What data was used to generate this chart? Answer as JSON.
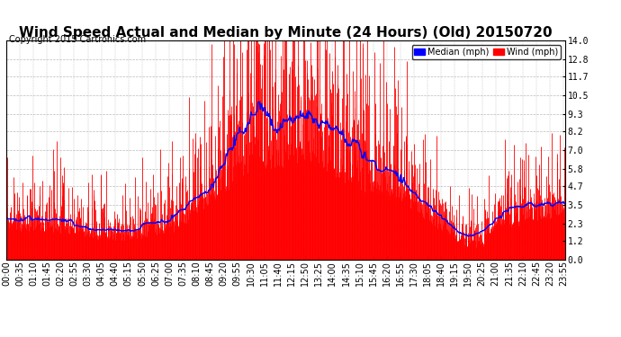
{
  "title": "Wind Speed Actual and Median by Minute (24 Hours) (Old) 20150720",
  "copyright": "Copyright 2015 Cartronics.com",
  "yticks": [
    0.0,
    1.2,
    2.3,
    3.5,
    4.7,
    5.8,
    7.0,
    8.2,
    9.3,
    10.5,
    11.7,
    12.8,
    14.0
  ],
  "ylim": [
    0.0,
    14.0
  ],
  "wind_color": "#ff0000",
  "median_color": "#0000ff",
  "bg_color": "#ffffff",
  "grid_color": "#bbbbbb",
  "legend_wind_label": "Wind (mph)",
  "legend_median_label": "Median (mph)",
  "title_fontsize": 11,
  "copyright_fontsize": 7,
  "tick_fontsize": 7
}
